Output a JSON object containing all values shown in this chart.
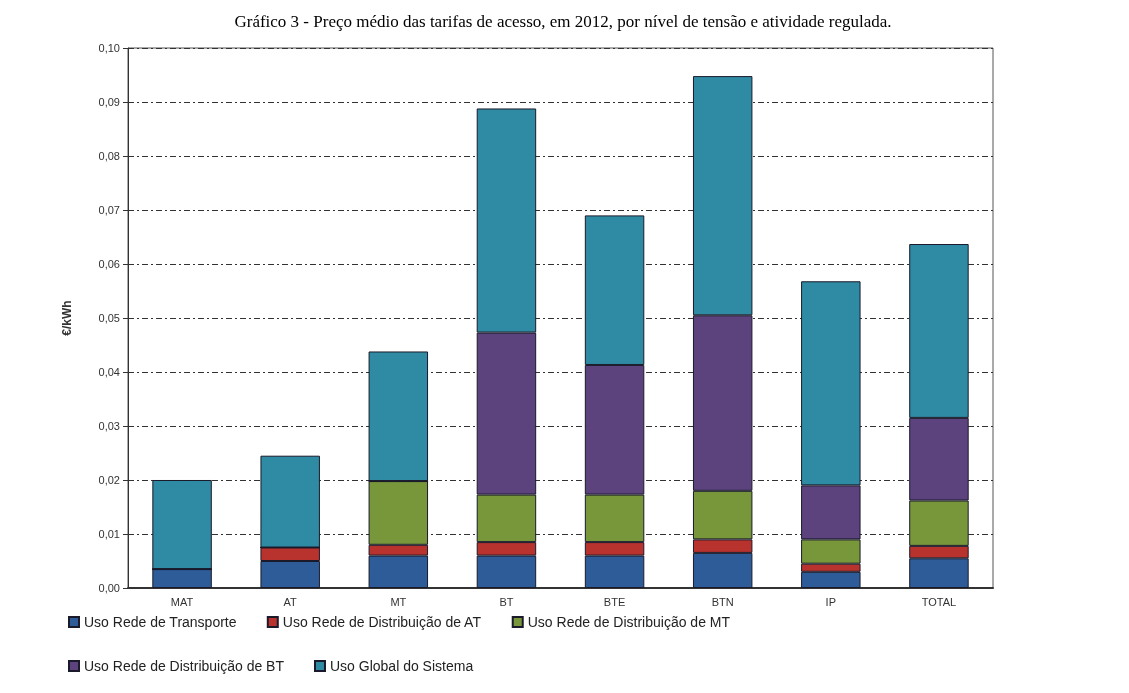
{
  "chart_data": {
    "type": "bar",
    "stacked": true,
    "title": "Gráfico 3 - Preço médio das tarifas de acesso, em 2012, por nível de tensão e atividade regulada.",
    "ylabel": "€/kWh",
    "categories": [
      "MAT",
      "AT",
      "MT",
      "BT",
      "BTE",
      "BTN",
      "IP",
      "TOTAL"
    ],
    "series": [
      {
        "name": "Uso Rede de Transporte",
        "color": "#2e5c99",
        "values": [
          0.0035,
          0.005,
          0.006,
          0.006,
          0.006,
          0.0065,
          0.003,
          0.0055
        ]
      },
      {
        "name": "Uso Rede de Distribuição de AT",
        "color": "#b8322e",
        "values": [
          0,
          0.0025,
          0.002,
          0.0025,
          0.0025,
          0.0025,
          0.0015,
          0.0023
        ]
      },
      {
        "name": "Uso Rede de Distribuição de MT",
        "color": "#77973a",
        "values": [
          0,
          0,
          0.0118,
          0.0088,
          0.0088,
          0.009,
          0.0045,
          0.0084
        ]
      },
      {
        "name": "Uso Rede de Distribuição de BT",
        "color": "#5c437e",
        "values": [
          0,
          0,
          0,
          0.03,
          0.024,
          0.0325,
          0.01,
          0.0153
        ]
      },
      {
        "name": "Uso Global do Sistema",
        "color": "#2f8aa3",
        "values": [
          0.0165,
          0.017,
          0.024,
          0.0415,
          0.0277,
          0.0443,
          0.0378,
          0.0322
        ]
      }
    ],
    "ylim": [
      0,
      0.1
    ],
    "yticks": [
      {
        "value": 0,
        "label": "0,00"
      },
      {
        "value": 0.01,
        "label": "0,01"
      },
      {
        "value": 0.02,
        "label": "0,02"
      },
      {
        "value": 0.03,
        "label": "0,03"
      },
      {
        "value": 0.04,
        "label": "0,04"
      },
      {
        "value": 0.05,
        "label": "0,05"
      },
      {
        "value": 0.06,
        "label": "0,06"
      },
      {
        "value": 0.07,
        "label": "0,07"
      },
      {
        "value": 0.08,
        "label": "0,08"
      },
      {
        "value": 0.09,
        "label": "0,09"
      },
      {
        "value": 0.1,
        "label": "0,10"
      }
    ],
    "grid": "y",
    "legend": "bottom left"
  }
}
